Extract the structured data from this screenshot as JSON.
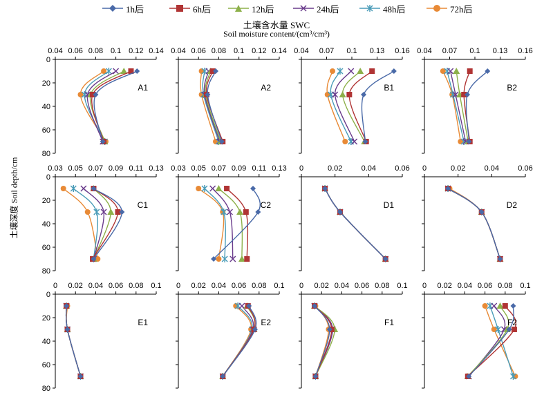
{
  "colors": {
    "1h": "#4a6aa8",
    "6h": "#b03434",
    "12h": "#8db04a",
    "24h": "#6a3c8c",
    "48h": "#4a9cb8",
    "72h": "#e88a36"
  },
  "legend": [
    {
      "key": "1h",
      "label": "1h后",
      "marker": "diamond"
    },
    {
      "key": "6h",
      "label": "6h后",
      "marker": "square"
    },
    {
      "key": "12h",
      "label": "12h后",
      "marker": "triangle"
    },
    {
      "key": "24h",
      "label": "24h后",
      "marker": "x"
    },
    {
      "key": "48h",
      "label": "48h后",
      "marker": "star"
    },
    {
      "key": "72h",
      "label": "72h后",
      "marker": "circle"
    }
  ],
  "x_title_cn": "土壤含水量 SWC",
  "x_title_en": "Soil moisture content/(cm³/cm³)",
  "y_title": "土壤深度 Soil depth/cm",
  "chart_data": {
    "type": "line",
    "depths": [
      10,
      30,
      70
    ],
    "ylim": [
      80,
      0
    ],
    "yticks": [
      0,
      20,
      40,
      60,
      80
    ],
    "panels": [
      {
        "label": "A1",
        "xlim": [
          0.04,
          0.14
        ],
        "xticks": [
          "0.04",
          "0.06",
          "0.08",
          "0.1",
          "0.12",
          "0.14"
        ],
        "series": {
          "1h": [
            0.121,
            0.08,
            0.087
          ],
          "6h": [
            0.115,
            0.077,
            0.088
          ],
          "12h": [
            0.108,
            0.075,
            0.089
          ],
          "24h": [
            0.1,
            0.072,
            0.087
          ],
          "48h": [
            0.093,
            0.069,
            0.089
          ],
          "72h": [
            0.088,
            0.065,
            0.09
          ]
        }
      },
      {
        "label": "A2",
        "xlim": [
          0.04,
          0.14
        ],
        "xticks": [
          "0.04",
          "0.06",
          "0.08",
          "0.1",
          "0.12",
          "0.14"
        ],
        "series": {
          "1h": [
            0.077,
            0.069,
            0.083
          ],
          "6h": [
            0.074,
            0.068,
            0.084
          ],
          "12h": [
            0.072,
            0.067,
            0.082
          ],
          "24h": [
            0.07,
            0.066,
            0.081
          ],
          "48h": [
            0.066,
            0.065,
            0.08
          ],
          "72h": [
            0.063,
            0.063,
            0.077
          ]
        }
      },
      {
        "label": "B1",
        "xlim": [
          0.04,
          0.16
        ],
        "xticks": [
          "0.04",
          "0.07",
          "0.1",
          "0.13",
          "0.16"
        ],
        "series": {
          "1h": [
            0.15,
            0.114,
            0.116
          ],
          "6h": [
            0.124,
            0.097,
            0.117
          ],
          "12h": [
            0.11,
            0.089,
            0.115
          ],
          "24h": [
            0.099,
            0.08,
            0.103
          ],
          "48h": [
            0.086,
            0.075,
            0.099
          ],
          "72h": [
            0.077,
            0.071,
            0.092
          ]
        }
      },
      {
        "label": "B2",
        "xlim": [
          0.04,
          0.16
        ],
        "xticks": [
          "0.04",
          "0.07",
          "0.1",
          "0.13",
          "0.16"
        ],
        "series": {
          "1h": [
            0.115,
            0.091,
            0.093
          ],
          "6h": [
            0.094,
            0.087,
            0.094
          ],
          "12h": [
            0.078,
            0.082,
            0.092
          ],
          "24h": [
            0.071,
            0.077,
            0.089
          ],
          "48h": [
            0.067,
            0.074,
            0.087
          ],
          "72h": [
            0.062,
            0.073,
            0.083
          ]
        }
      },
      {
        "label": "C1",
        "xlim": [
          0.03,
          0.13
        ],
        "xticks": [
          "0.03",
          "0.05",
          "0.07",
          "0.09",
          "0.11",
          "0.13"
        ],
        "series": {
          "1h": [
            0.068,
            0.096,
            0.068
          ],
          "6h": [
            0.068,
            0.092,
            0.067
          ],
          "12h": [
            0.068,
            0.085,
            0.068
          ],
          "24h": [
            0.058,
            0.078,
            0.068
          ],
          "48h": [
            0.048,
            0.071,
            0.068
          ],
          "72h": [
            0.038,
            0.062,
            0.072
          ]
        }
      },
      {
        "label": "C2",
        "xlim": [
          0.03,
          0.13
        ],
        "xticks": [
          "0.03",
          "0.05",
          "0.07",
          "0.09",
          "0.11",
          "0.13"
        ],
        "series": {
          "1h": [
            0.104,
            0.109,
            0.065
          ],
          "6h": [
            0.078,
            0.097,
            0.098
          ],
          "12h": [
            0.07,
            0.091,
            0.093
          ],
          "24h": [
            0.064,
            0.081,
            0.084
          ],
          "48h": [
            0.056,
            0.075,
            0.076
          ],
          "72h": [
            0.05,
            0.074,
            0.07
          ]
        }
      },
      {
        "label": "D1",
        "xlim": [
          0,
          0.06
        ],
        "xticks": [
          "0",
          "0.02",
          "0.04",
          "0.06"
        ],
        "series": {
          "1h": [
            0.014,
            0.023,
            0.05
          ],
          "6h": [
            0.014,
            0.023,
            0.05
          ],
          "12h": [
            0.014,
            0.023,
            0.05
          ],
          "24h": [
            0.014,
            0.023,
            0.05
          ],
          "48h": [
            0.014,
            0.023,
            0.05
          ],
          "72h": [
            0.014,
            0.023,
            0.05
          ]
        }
      },
      {
        "label": "D2",
        "xlim": [
          0,
          0.06
        ],
        "xticks": [
          "0",
          "0.02",
          "0.04",
          "0.06"
        ],
        "series": {
          "1h": [
            0.014,
            0.034,
            0.045
          ],
          "6h": [
            0.014,
            0.034,
            0.045
          ],
          "12h": [
            0.014,
            0.034,
            0.045
          ],
          "24h": [
            0.014,
            0.034,
            0.045
          ],
          "48h": [
            0.014,
            0.034,
            0.045
          ],
          "72h": [
            0.015,
            0.034,
            0.045
          ]
        }
      },
      {
        "label": "E1",
        "xlim": [
          0,
          0.1
        ],
        "xticks": [
          "0",
          "0.02",
          "0.04",
          "0.06",
          "0.08",
          "0.1"
        ],
        "series": {
          "1h": [
            0.011,
            0.012,
            0.025
          ],
          "6h": [
            0.011,
            0.012,
            0.025
          ],
          "12h": [
            0.011,
            0.012,
            0.025
          ],
          "24h": [
            0.011,
            0.012,
            0.025
          ],
          "48h": [
            0.011,
            0.012,
            0.025
          ],
          "72h": [
            0.012,
            0.012,
            0.025
          ]
        }
      },
      {
        "label": "E2",
        "xlim": [
          0,
          0.1
        ],
        "xticks": [
          "0",
          "0.02",
          "0.04",
          "0.06",
          "0.08",
          "0.1"
        ],
        "series": {
          "1h": [
            0.07,
            0.076,
            0.044
          ],
          "6h": [
            0.069,
            0.075,
            0.044
          ],
          "12h": [
            0.068,
            0.075,
            0.044
          ],
          "24h": [
            0.063,
            0.074,
            0.044
          ],
          "48h": [
            0.059,
            0.073,
            0.044
          ],
          "72h": [
            0.057,
            0.072,
            0.044
          ]
        }
      },
      {
        "label": "F1",
        "xlim": [
          0,
          0.1
        ],
        "xticks": [
          "0",
          "0.02",
          "0.04",
          "0.06",
          "0.08",
          "0.1"
        ],
        "series": {
          "1h": [
            0.013,
            0.028,
            0.014
          ],
          "6h": [
            0.013,
            0.03,
            0.014
          ],
          "12h": [
            0.013,
            0.033,
            0.014
          ],
          "24h": [
            0.013,
            0.031,
            0.014
          ],
          "48h": [
            0.013,
            0.03,
            0.014
          ],
          "72h": [
            0.014,
            0.027,
            0.014
          ]
        }
      },
      {
        "label": "F2",
        "xlim": [
          0,
          0.1
        ],
        "xticks": [
          "0",
          "0.02",
          "0.04",
          "0.06",
          "0.08",
          "0.1"
        ],
        "series": {
          "1h": [
            0.088,
            0.084,
            0.044
          ],
          "6h": [
            0.08,
            0.089,
            0.043
          ],
          "12h": [
            0.075,
            0.082,
            0.043
          ],
          "24h": [
            0.069,
            0.079,
            0.044
          ],
          "48h": [
            0.065,
            0.073,
            0.088
          ],
          "72h": [
            0.06,
            0.069,
            0.09
          ]
        }
      }
    ]
  }
}
